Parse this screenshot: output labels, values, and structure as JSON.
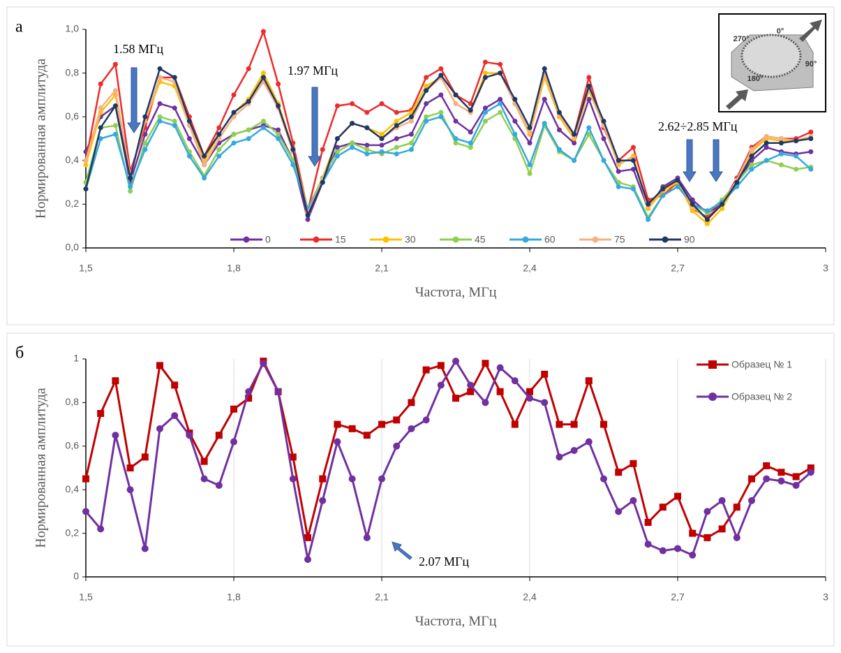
{
  "chart_data": [
    {
      "type": "line",
      "panel_label": "а",
      "xlabel": "Частота, МГц",
      "ylabel": "Нормированная амплитуда",
      "xlim": [
        1.5,
        3
      ],
      "xticks": [
        {
          "value": 1.5,
          "label": "1,5"
        },
        {
          "value": 1.8,
          "label": "1,8"
        },
        {
          "value": 2.1,
          "label": "2,1"
        },
        {
          "value": 2.4,
          "label": "2,4"
        },
        {
          "value": 2.7,
          "label": "2,7"
        },
        3
      ],
      "ylim": [
        0,
        1
      ],
      "yticks": [
        {
          "value": 0,
          "label": "0,0"
        },
        {
          "value": 0.2,
          "label": "0,2"
        },
        {
          "value": 0.4,
          "label": "0,4"
        },
        {
          "value": 0.6,
          "label": "0,6"
        },
        {
          "value": 0.8,
          "label": "0,8"
        },
        {
          "value": 1,
          "label": "1,0"
        }
      ],
      "grid": false,
      "legend": "bottom",
      "annotations": [
        "1.58 МГц",
        "1.97 МГц",
        "2.62÷2.85 МГц"
      ],
      "inset_labels": [
        "270°",
        "0°",
        "90°",
        "180°"
      ],
      "x": [
        1.5,
        1.53,
        1.56,
        1.59,
        1.62,
        1.65,
        1.68,
        1.71,
        1.74,
        1.77,
        1.8,
        1.83,
        1.86,
        1.89,
        1.92,
        1.95,
        1.98,
        2.01,
        2.04,
        2.07,
        2.1,
        2.13,
        2.16,
        2.19,
        2.22,
        2.25,
        2.28,
        2.31,
        2.34,
        2.37,
        2.4,
        2.43,
        2.46,
        2.49,
        2.52,
        2.55,
        2.58,
        2.61,
        2.64,
        2.67,
        2.7,
        2.73,
        2.76,
        2.79,
        2.82,
        2.85,
        2.88,
        2.91,
        2.94,
        2.97
      ],
      "series": [
        {
          "name": "0",
          "color": "#7030a0",
          "marker": "circle",
          "values": [
            0.44,
            0.6,
            0.65,
            0.3,
            0.52,
            0.66,
            0.64,
            0.5,
            0.38,
            0.48,
            0.52,
            0.54,
            0.56,
            0.54,
            0.4,
            0.13,
            0.3,
            0.46,
            0.48,
            0.47,
            0.47,
            0.5,
            0.52,
            0.66,
            0.7,
            0.58,
            0.53,
            0.64,
            0.68,
            0.58,
            0.48,
            0.68,
            0.54,
            0.48,
            0.68,
            0.5,
            0.35,
            0.36,
            0.18,
            0.28,
            0.32,
            0.22,
            0.16,
            0.2,
            0.3,
            0.4,
            0.46,
            0.44,
            0.43,
            0.44
          ]
        },
        {
          "name": "15",
          "color": "#ee2b2b",
          "marker": "circle",
          "values": [
            0.4,
            0.75,
            0.84,
            0.35,
            0.55,
            0.78,
            0.78,
            0.6,
            0.42,
            0.55,
            0.7,
            0.82,
            0.99,
            0.75,
            0.48,
            0.17,
            0.45,
            0.65,
            0.66,
            0.62,
            0.66,
            0.62,
            0.63,
            0.78,
            0.82,
            0.7,
            0.66,
            0.85,
            0.84,
            0.66,
            0.52,
            0.8,
            0.6,
            0.52,
            0.78,
            0.55,
            0.4,
            0.46,
            0.22,
            0.24,
            0.3,
            0.18,
            0.14,
            0.2,
            0.32,
            0.46,
            0.51,
            0.5,
            0.5,
            0.53
          ]
        },
        {
          "name": "30",
          "color": "#ffc000",
          "marker": "circle",
          "values": [
            0.38,
            0.62,
            0.7,
            0.33,
            0.58,
            0.76,
            0.74,
            0.56,
            0.4,
            0.52,
            0.62,
            0.68,
            0.8,
            0.66,
            0.45,
            0.17,
            0.32,
            0.5,
            0.57,
            0.55,
            0.52,
            0.58,
            0.62,
            0.74,
            0.78,
            0.66,
            0.62,
            0.8,
            0.8,
            0.66,
            0.52,
            0.78,
            0.6,
            0.5,
            0.72,
            0.56,
            0.38,
            0.42,
            0.18,
            0.26,
            0.3,
            0.17,
            0.11,
            0.18,
            0.3,
            0.44,
            0.5,
            0.49,
            0.49,
            0.5
          ]
        },
        {
          "name": "45",
          "color": "#8fcf50",
          "marker": "circle",
          "values": [
            0.3,
            0.55,
            0.56,
            0.26,
            0.48,
            0.6,
            0.58,
            0.44,
            0.33,
            0.45,
            0.52,
            0.54,
            0.58,
            0.52,
            0.4,
            0.18,
            0.32,
            0.44,
            0.48,
            0.45,
            0.43,
            0.46,
            0.48,
            0.6,
            0.62,
            0.48,
            0.46,
            0.58,
            0.62,
            0.5,
            0.34,
            0.56,
            0.44,
            0.4,
            0.52,
            0.4,
            0.3,
            0.28,
            0.14,
            0.24,
            0.28,
            0.2,
            0.16,
            0.22,
            0.3,
            0.38,
            0.4,
            0.38,
            0.36,
            0.37
          ]
        },
        {
          "name": "60",
          "color": "#35a8e0",
          "marker": "circle",
          "values": [
            0.27,
            0.5,
            0.52,
            0.28,
            0.45,
            0.58,
            0.56,
            0.42,
            0.32,
            0.42,
            0.48,
            0.5,
            0.55,
            0.5,
            0.38,
            0.18,
            0.3,
            0.42,
            0.46,
            0.43,
            0.44,
            0.43,
            0.45,
            0.58,
            0.6,
            0.5,
            0.48,
            0.62,
            0.66,
            0.52,
            0.38,
            0.57,
            0.45,
            0.4,
            0.55,
            0.4,
            0.28,
            0.27,
            0.13,
            0.24,
            0.28,
            0.2,
            0.17,
            0.21,
            0.28,
            0.36,
            0.4,
            0.43,
            0.42,
            0.36
          ]
        },
        {
          "name": "75",
          "color": "#f4b183",
          "marker": "circle",
          "values": [
            0.4,
            0.64,
            0.72,
            0.33,
            0.58,
            0.78,
            0.76,
            0.56,
            0.38,
            0.5,
            0.6,
            0.66,
            0.76,
            0.64,
            0.44,
            0.16,
            0.31,
            0.5,
            0.57,
            0.55,
            0.5,
            0.55,
            0.58,
            0.72,
            0.78,
            0.66,
            0.62,
            0.78,
            0.8,
            0.66,
            0.53,
            0.8,
            0.61,
            0.51,
            0.73,
            0.56,
            0.39,
            0.41,
            0.19,
            0.27,
            0.31,
            0.19,
            0.13,
            0.2,
            0.31,
            0.45,
            0.51,
            0.5,
            0.49,
            0.51
          ]
        },
        {
          "name": "90",
          "color": "#1f3864",
          "marker": "circle",
          "values": [
            0.27,
            0.55,
            0.65,
            0.32,
            0.6,
            0.82,
            0.78,
            0.58,
            0.42,
            0.52,
            0.62,
            0.67,
            0.78,
            0.65,
            0.45,
            0.15,
            0.3,
            0.5,
            0.57,
            0.55,
            0.5,
            0.56,
            0.6,
            0.72,
            0.79,
            0.7,
            0.63,
            0.78,
            0.8,
            0.68,
            0.55,
            0.82,
            0.62,
            0.52,
            0.74,
            0.58,
            0.4,
            0.4,
            0.2,
            0.27,
            0.31,
            0.2,
            0.13,
            0.2,
            0.3,
            0.42,
            0.48,
            0.48,
            0.49,
            0.5
          ]
        }
      ]
    },
    {
      "type": "line",
      "panel_label": "б",
      "xlabel": "Частота, МГц",
      "ylabel": "Нормированная амплитуда",
      "xlim": [
        1.5,
        3
      ],
      "xticks": [
        {
          "value": 1.5,
          "label": "1,5"
        },
        {
          "value": 1.8,
          "label": "1,8"
        },
        {
          "value": 2.1,
          "label": "2,1"
        },
        {
          "value": 2.4,
          "label": "2,4"
        },
        {
          "value": 2.7,
          "label": "2,7"
        },
        3
      ],
      "ylim": [
        0,
        1
      ],
      "yticks": [
        0,
        {
          "value": 0.2,
          "label": "0,2"
        },
        {
          "value": 0.4,
          "label": "0,4"
        },
        {
          "value": 0.6,
          "label": "0,6"
        },
        {
          "value": 0.8,
          "label": "0,8"
        },
        1
      ],
      "grid": "x",
      "legend": "top-right",
      "annotations": [
        "2.07 МГц"
      ],
      "x": [
        1.5,
        1.53,
        1.56,
        1.59,
        1.62,
        1.65,
        1.68,
        1.71,
        1.74,
        1.77,
        1.8,
        1.83,
        1.86,
        1.89,
        1.92,
        1.95,
        1.98,
        2.01,
        2.04,
        2.07,
        2.1,
        2.13,
        2.16,
        2.19,
        2.22,
        2.25,
        2.28,
        2.31,
        2.34,
        2.37,
        2.4,
        2.43,
        2.46,
        2.49,
        2.52,
        2.55,
        2.58,
        2.61,
        2.64,
        2.67,
        2.7,
        2.73,
        2.76,
        2.79,
        2.82,
        2.85,
        2.88,
        2.91,
        2.94,
        2.97
      ],
      "series": [
        {
          "name": "Образец № 1",
          "color": "#c00000",
          "marker": "square",
          "values": [
            0.45,
            0.75,
            0.9,
            0.5,
            0.55,
            0.97,
            0.88,
            0.66,
            0.53,
            0.65,
            0.77,
            0.82,
            0.99,
            0.85,
            0.55,
            0.18,
            0.45,
            0.7,
            0.68,
            0.65,
            0.7,
            0.72,
            0.8,
            0.95,
            0.97,
            0.82,
            0.85,
            0.98,
            0.85,
            0.7,
            0.85,
            0.93,
            0.7,
            0.7,
            0.9,
            0.7,
            0.48,
            0.52,
            0.25,
            0.32,
            0.37,
            0.2,
            0.18,
            0.22,
            0.32,
            0.45,
            0.51,
            0.48,
            0.46,
            0.5
          ]
        },
        {
          "name": "Образец № 2",
          "color": "#7030a0",
          "marker": "circle",
          "values": [
            0.3,
            0.22,
            0.65,
            0.4,
            0.13,
            0.68,
            0.74,
            0.65,
            0.45,
            0.42,
            0.62,
            0.85,
            0.98,
            0.85,
            0.45,
            0.08,
            0.35,
            0.62,
            0.45,
            0.18,
            0.45,
            0.6,
            0.68,
            0.72,
            0.88,
            0.99,
            0.88,
            0.8,
            0.96,
            0.9,
            0.82,
            0.8,
            0.55,
            0.58,
            0.62,
            0.45,
            0.3,
            0.35,
            0.15,
            0.12,
            0.13,
            0.1,
            0.3,
            0.35,
            0.18,
            0.35,
            0.45,
            0.44,
            0.42,
            0.48
          ]
        }
      ]
    }
  ]
}
